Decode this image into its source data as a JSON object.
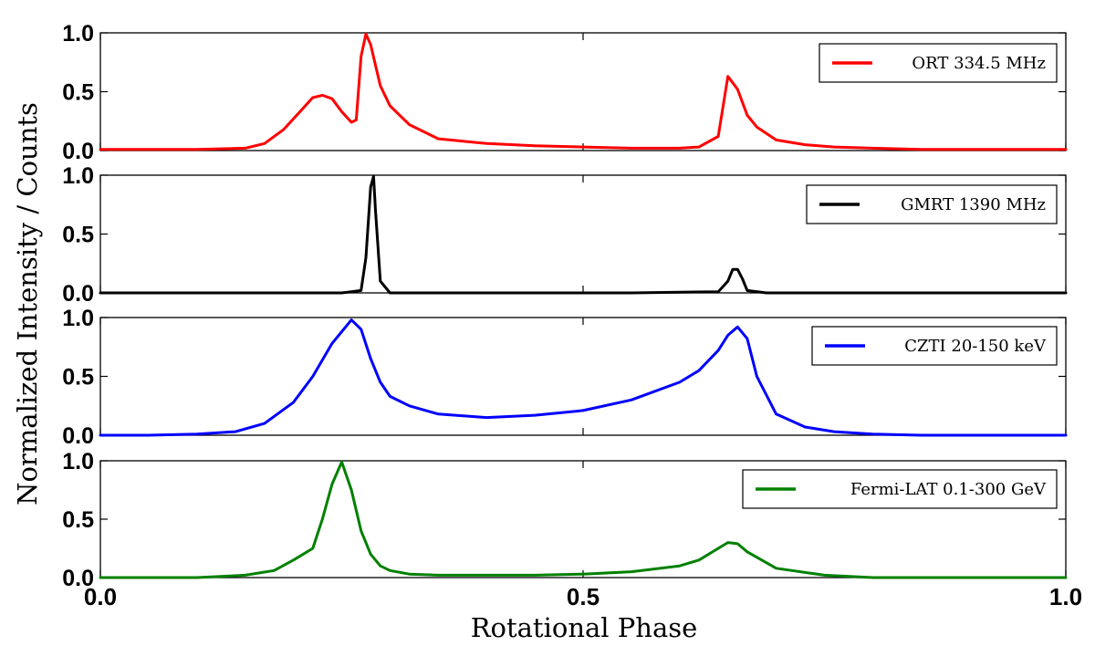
{
  "chart_data": {
    "type": "line",
    "xlabel": "Rotational Phase",
    "ylabel": "Normalized Intensity / Counts",
    "xlim": [
      0.0,
      1.0
    ],
    "xticks": [
      "0.0",
      "0.5",
      "1.0"
    ],
    "xtick_values": [
      0.0,
      0.5,
      1.0
    ],
    "yticks": [
      "0.0",
      "0.5",
      "1.0"
    ],
    "ytick_values": [
      0.0,
      0.5,
      1.0
    ],
    "panels": [
      {
        "label": "ORT 334.5 MHz",
        "color": "#ff0000",
        "ylim": [
          0,
          1.0
        ],
        "legend_loc": "upper right",
        "x": [
          0.0,
          0.05,
          0.1,
          0.15,
          0.17,
          0.19,
          0.21,
          0.22,
          0.23,
          0.24,
          0.25,
          0.26,
          0.265,
          0.27,
          0.275,
          0.28,
          0.29,
          0.3,
          0.32,
          0.35,
          0.4,
          0.45,
          0.5,
          0.55,
          0.6,
          0.62,
          0.64,
          0.65,
          0.66,
          0.67,
          0.68,
          0.7,
          0.73,
          0.76,
          0.8,
          0.85,
          0.9,
          0.95,
          1.0
        ],
        "y": [
          0.01,
          0.01,
          0.01,
          0.02,
          0.06,
          0.18,
          0.36,
          0.45,
          0.47,
          0.44,
          0.33,
          0.24,
          0.26,
          0.8,
          0.99,
          0.9,
          0.55,
          0.38,
          0.22,
          0.1,
          0.06,
          0.04,
          0.03,
          0.02,
          0.02,
          0.03,
          0.12,
          0.63,
          0.52,
          0.3,
          0.2,
          0.09,
          0.05,
          0.03,
          0.02,
          0.01,
          0.01,
          0.01,
          0.01
        ]
      },
      {
        "label": "GMRT 1390 MHz",
        "color": "#000000",
        "ylim": [
          0,
          1.0
        ],
        "legend_loc": "upper right",
        "x": [
          0.0,
          0.1,
          0.2,
          0.25,
          0.27,
          0.275,
          0.28,
          0.283,
          0.285,
          0.29,
          0.3,
          0.35,
          0.45,
          0.55,
          0.64,
          0.65,
          0.655,
          0.66,
          0.665,
          0.67,
          0.69,
          0.8,
          0.9,
          1.0
        ],
        "y": [
          0.0,
          0.0,
          0.0,
          0.0,
          0.02,
          0.3,
          0.9,
          0.99,
          0.7,
          0.1,
          0.0,
          0.0,
          0.0,
          0.0,
          0.01,
          0.1,
          0.2,
          0.2,
          0.12,
          0.02,
          0.0,
          0.0,
          0.0,
          0.0
        ]
      },
      {
        "label": "CZTI 20-150 keV",
        "color": "#0000ff",
        "ylim": [
          0,
          1.0
        ],
        "legend_loc": "upper right",
        "x": [
          0.0,
          0.05,
          0.1,
          0.14,
          0.17,
          0.2,
          0.22,
          0.24,
          0.26,
          0.27,
          0.28,
          0.29,
          0.3,
          0.32,
          0.35,
          0.4,
          0.45,
          0.5,
          0.55,
          0.6,
          0.62,
          0.64,
          0.65,
          0.66,
          0.67,
          0.68,
          0.7,
          0.73,
          0.76,
          0.8,
          0.85,
          0.9,
          1.0
        ],
        "y": [
          0.0,
          0.0,
          0.01,
          0.03,
          0.1,
          0.28,
          0.5,
          0.78,
          0.98,
          0.9,
          0.65,
          0.45,
          0.33,
          0.25,
          0.18,
          0.15,
          0.17,
          0.21,
          0.3,
          0.45,
          0.55,
          0.72,
          0.85,
          0.92,
          0.82,
          0.5,
          0.18,
          0.07,
          0.03,
          0.01,
          0.0,
          0.0,
          0.0
        ]
      },
      {
        "label": "Fermi-LAT 0.1-300 GeV",
        "color": "#008000",
        "ylim": [
          0,
          1.0
        ],
        "legend_loc": "upper right",
        "x": [
          0.0,
          0.05,
          0.1,
          0.15,
          0.18,
          0.2,
          0.22,
          0.23,
          0.24,
          0.25,
          0.26,
          0.27,
          0.28,
          0.29,
          0.3,
          0.32,
          0.35,
          0.4,
          0.45,
          0.5,
          0.55,
          0.6,
          0.62,
          0.64,
          0.65,
          0.66,
          0.67,
          0.7,
          0.75,
          0.8,
          0.9,
          1.0
        ],
        "y": [
          0.0,
          0.0,
          0.0,
          0.02,
          0.06,
          0.15,
          0.25,
          0.5,
          0.8,
          0.99,
          0.75,
          0.4,
          0.2,
          0.1,
          0.06,
          0.03,
          0.02,
          0.02,
          0.02,
          0.03,
          0.05,
          0.1,
          0.15,
          0.25,
          0.3,
          0.29,
          0.22,
          0.08,
          0.02,
          0.0,
          0.0,
          0.0
        ]
      }
    ]
  }
}
